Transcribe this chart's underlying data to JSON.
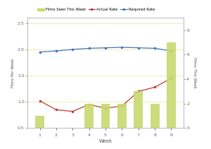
{
  "weeks": [
    1,
    2,
    3,
    4,
    5,
    6,
    7,
    8,
    9
  ],
  "films_seen": [
    1,
    0,
    0,
    2,
    2,
    2,
    3,
    2,
    7
  ],
  "actual_rate": [
    1.02,
    0.85,
    0.82,
    0.95,
    0.88,
    0.92,
    1.2,
    1.28,
    1.45
  ],
  "required_rate": [
    1.95,
    1.97,
    2.0,
    2.02,
    2.03,
    2.04,
    2.03,
    2.02,
    1.97
  ],
  "bar_color": "#c8d96f",
  "actual_color": "#c0392b",
  "required_color": "#4472c4",
  "left_ylim": [
    0.5,
    2.6
  ],
  "right_ylim": [
    0,
    9
  ],
  "left_yticks": [
    0.5,
    1.0,
    1.5,
    2.0,
    2.5
  ],
  "right_yticks": [
    0,
    2,
    4,
    6,
    8
  ],
  "left_ylabel": "Films Per Week",
  "right_ylabel": "Films This Week",
  "xlabel": "Week",
  "legend_labels": [
    "Films Seen This Week",
    "Actual Rate",
    "Required Rate"
  ],
  "grid_color": "#d4e157",
  "background_color": "#ffffff"
}
